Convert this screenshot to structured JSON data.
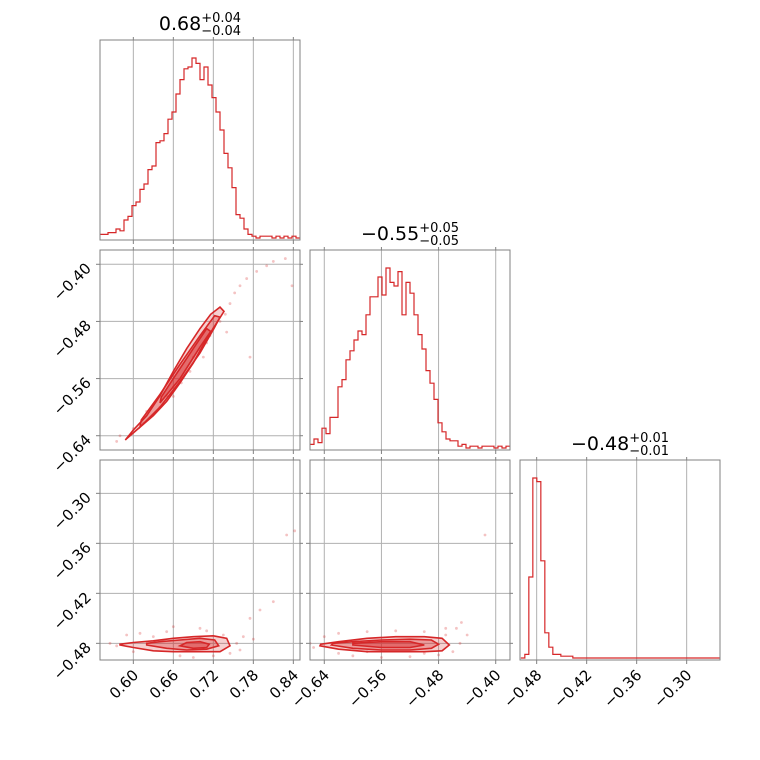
{
  "chart_data": {
    "type": "corner",
    "color": "#d62728",
    "parameters": [
      {
        "index": 0,
        "range": [
          0.55,
          0.85
        ],
        "ticks": [
          0.6,
          0.66,
          0.72,
          0.78,
          0.84
        ],
        "tick_labels": [
          "0.60",
          "0.66",
          "0.72",
          "0.78",
          "0.84"
        ],
        "title_median": "0.68",
        "title_upper": "+0.04",
        "title_lower": "−0.04",
        "hist_x_start": 0.55,
        "hist_bin_width": 0.006,
        "hist_counts": [
          2,
          2,
          3,
          3,
          5,
          4,
          10,
          12,
          18,
          20,
          27,
          30,
          38,
          40,
          53,
          54,
          58,
          66,
          70,
          80,
          88,
          94,
          95,
          100,
          97,
          88,
          95,
          85,
          78,
          70,
          60,
          47,
          39,
          28,
          13,
          11,
          5,
          2,
          1,
          0,
          1,
          1,
          1,
          0,
          1,
          0,
          1,
          0,
          1,
          0
        ]
      },
      {
        "index": 1,
        "range": [
          -0.66,
          -0.38
        ],
        "ticks": [
          -0.4,
          -0.48,
          -0.56,
          -0.64
        ],
        "tick_labels": [
          "−0.40",
          "−0.48",
          "−0.56",
          "−0.64"
        ],
        "title_median": "−0.55",
        "title_upper": "+0.05",
        "title_lower": "−0.05",
        "hist_x_start": -0.66,
        "hist_bin_width": 0.0056,
        "hist_counts": [
          2,
          5,
          3,
          11,
          8,
          17,
          17,
          34,
          38,
          49,
          54,
          60,
          65,
          63,
          74,
          84,
          84,
          95,
          85,
          100,
          92,
          90,
          98,
          74,
          92,
          86,
          74,
          63,
          55,
          43,
          36,
          27,
          14,
          9,
          5,
          4,
          4,
          1,
          2,
          0,
          1,
          1,
          0,
          1,
          1,
          1,
          0,
          1,
          0,
          1
        ]
      },
      {
        "index": 2,
        "range": [
          -0.5,
          -0.26
        ],
        "ticks": [
          -0.48,
          -0.42,
          -0.36,
          -0.3
        ],
        "tick_labels": [
          "−0.48",
          "−0.42",
          "−0.36",
          "−0.30"
        ],
        "title_median": "−0.48",
        "title_upper": "+0.01",
        "title_lower": "−0.01",
        "hist_x_start": -0.499,
        "hist_bin_width": 0.0048,
        "hist_counts": [
          0,
          2,
          45,
          100,
          98,
          54,
          14,
          6,
          2,
          2,
          1,
          1,
          1,
          0,
          0,
          0,
          0,
          0,
          0,
          0,
          0,
          0,
          0,
          0,
          0,
          0,
          0,
          0,
          0,
          0,
          0,
          0,
          0,
          0,
          0,
          0,
          0,
          0,
          0,
          0,
          0,
          0,
          0,
          0,
          0,
          0,
          0,
          0,
          0,
          0
        ]
      }
    ],
    "pairs": [
      {
        "x_param": 0,
        "y_param": 1,
        "contours": [
          [
            [
              0.59,
              -0.644
            ],
            [
              0.61,
              -0.628
            ],
            [
              0.63,
              -0.612
            ],
            [
              0.65,
              -0.592
            ],
            [
              0.67,
              -0.566
            ],
            [
              0.69,
              -0.538
            ],
            [
              0.71,
              -0.504
            ],
            [
              0.725,
              -0.482
            ],
            [
              0.736,
              -0.466
            ],
            [
              0.73,
              -0.46
            ],
            [
              0.716,
              -0.47
            ],
            [
              0.7,
              -0.49
            ],
            [
              0.68,
              -0.518
            ],
            [
              0.66,
              -0.55
            ],
            [
              0.64,
              -0.584
            ],
            [
              0.62,
              -0.612
            ],
            [
              0.6,
              -0.632
            ],
            [
              0.588,
              -0.646
            ]
          ],
          [
            [
              0.61,
              -0.628
            ],
            [
              0.64,
              -0.6
            ],
            [
              0.67,
              -0.564
            ],
            [
              0.7,
              -0.524
            ],
            [
              0.722,
              -0.488
            ],
            [
              0.73,
              -0.474
            ],
            [
              0.722,
              -0.472
            ],
            [
              0.7,
              -0.5
            ],
            [
              0.67,
              -0.54
            ],
            [
              0.64,
              -0.582
            ],
            [
              0.612,
              -0.618
            ]
          ],
          [
            [
              0.64,
              -0.594
            ],
            [
              0.67,
              -0.56
            ],
            [
              0.7,
              -0.516
            ],
            [
              0.716,
              -0.494
            ],
            [
              0.71,
              -0.49
            ],
            [
              0.69,
              -0.518
            ],
            [
              0.66,
              -0.56
            ],
            [
              0.642,
              -0.586
            ]
          ]
        ],
        "scatter": [
          [
            0.575,
            -0.648
          ],
          [
            0.58,
            -0.64
          ],
          [
            0.6,
            -0.63
          ],
          [
            0.615,
            -0.622
          ],
          [
            0.62,
            -0.606
          ],
          [
            0.64,
            -0.6
          ],
          [
            0.65,
            -0.584
          ],
          [
            0.66,
            -0.572
          ],
          [
            0.672,
            -0.566
          ],
          [
            0.685,
            -0.55
          ],
          [
            0.7,
            -0.52
          ],
          [
            0.705,
            -0.53
          ],
          [
            0.715,
            -0.5
          ],
          [
            0.72,
            -0.49
          ],
          [
            0.73,
            -0.48
          ],
          [
            0.738,
            -0.47
          ],
          [
            0.745,
            -0.455
          ],
          [
            0.752,
            -0.44
          ],
          [
            0.76,
            -0.43
          ],
          [
            0.77,
            -0.42
          ],
          [
            0.785,
            -0.41
          ],
          [
            0.8,
            -0.402
          ],
          [
            0.81,
            -0.396
          ],
          [
            0.828,
            -0.392
          ],
          [
            0.838,
            -0.43
          ],
          [
            0.775,
            -0.53
          ],
          [
            0.74,
            -0.495
          ],
          [
            0.69,
            -0.53
          ],
          [
            0.71,
            -0.51
          ],
          [
            0.66,
            -0.585
          ]
        ]
      },
      {
        "x_param": 0,
        "y_param": 2,
        "contours": [
          [
            [
              0.58,
              -0.482
            ],
            [
              0.6,
              -0.485
            ],
            [
              0.63,
              -0.489
            ],
            [
              0.66,
              -0.49
            ],
            [
              0.69,
              -0.49
            ],
            [
              0.71,
              -0.49
            ],
            [
              0.73,
              -0.49
            ],
            [
              0.745,
              -0.483
            ],
            [
              0.74,
              -0.474
            ],
            [
              0.72,
              -0.471
            ],
            [
              0.69,
              -0.472
            ],
            [
              0.66,
              -0.474
            ],
            [
              0.63,
              -0.477
            ],
            [
              0.6,
              -0.479
            ],
            [
              0.58,
              -0.481
            ]
          ],
          [
            [
              0.62,
              -0.482
            ],
            [
              0.65,
              -0.486
            ],
            [
              0.68,
              -0.488
            ],
            [
              0.71,
              -0.487
            ],
            [
              0.728,
              -0.483
            ],
            [
              0.722,
              -0.476
            ],
            [
              0.7,
              -0.474
            ],
            [
              0.67,
              -0.476
            ],
            [
              0.64,
              -0.478
            ],
            [
              0.62,
              -0.48
            ]
          ],
          [
            [
              0.67,
              -0.483
            ],
            [
              0.69,
              -0.486
            ],
            [
              0.71,
              -0.485
            ],
            [
              0.714,
              -0.481
            ],
            [
              0.7,
              -0.478
            ],
            [
              0.68,
              -0.479
            ]
          ]
        ],
        "scatter": [
          [
            0.565,
            -0.48
          ],
          [
            0.575,
            -0.483
          ],
          [
            0.59,
            -0.47
          ],
          [
            0.61,
            -0.468
          ],
          [
            0.63,
            -0.472
          ],
          [
            0.65,
            -0.466
          ],
          [
            0.67,
            -0.495
          ],
          [
            0.69,
            -0.497
          ],
          [
            0.71,
            -0.465
          ],
          [
            0.72,
            -0.495
          ],
          [
            0.735,
            -0.47
          ],
          [
            0.745,
            -0.492
          ],
          [
            0.755,
            -0.48
          ],
          [
            0.765,
            -0.472
          ],
          [
            0.775,
            -0.45
          ],
          [
            0.79,
            -0.44
          ],
          [
            0.81,
            -0.43
          ],
          [
            0.83,
            -0.35
          ],
          [
            0.842,
            -0.345
          ],
          [
            0.7,
            -0.462
          ],
          [
            0.66,
            -0.46
          ],
          [
            0.6,
            -0.49
          ],
          [
            0.76,
            -0.488
          ],
          [
            0.78,
            -0.475
          ]
        ]
      },
      {
        "x_param": 1,
        "y_param": 2,
        "contours": [
          [
            [
              -0.646,
              -0.483
            ],
            [
              -0.62,
              -0.487
            ],
            [
              -0.58,
              -0.49
            ],
            [
              -0.54,
              -0.49
            ],
            [
              -0.5,
              -0.49
            ],
            [
              -0.475,
              -0.489
            ],
            [
              -0.465,
              -0.482
            ],
            [
              -0.475,
              -0.474
            ],
            [
              -0.5,
              -0.472
            ],
            [
              -0.54,
              -0.472
            ],
            [
              -0.58,
              -0.474
            ],
            [
              -0.62,
              -0.478
            ],
            [
              -0.645,
              -0.481
            ]
          ],
          [
            [
              -0.63,
              -0.482
            ],
            [
              -0.6,
              -0.486
            ],
            [
              -0.56,
              -0.488
            ],
            [
              -0.52,
              -0.488
            ],
            [
              -0.49,
              -0.486
            ],
            [
              -0.48,
              -0.481
            ],
            [
              -0.49,
              -0.476
            ],
            [
              -0.52,
              -0.475
            ],
            [
              -0.56,
              -0.476
            ],
            [
              -0.6,
              -0.478
            ],
            [
              -0.628,
              -0.48
            ]
          ],
          [
            [
              -0.6,
              -0.482
            ],
            [
              -0.56,
              -0.485
            ],
            [
              -0.52,
              -0.485
            ],
            [
              -0.5,
              -0.482
            ],
            [
              -0.52,
              -0.478
            ],
            [
              -0.56,
              -0.478
            ],
            [
              -0.6,
              -0.48
            ]
          ]
        ],
        "scatter": [
          [
            -0.66,
            -0.48
          ],
          [
            -0.655,
            -0.485
          ],
          [
            -0.64,
            -0.472
          ],
          [
            -0.62,
            -0.468
          ],
          [
            -0.6,
            -0.495
          ],
          [
            -0.58,
            -0.466
          ],
          [
            -0.56,
            -0.497
          ],
          [
            -0.54,
            -0.465
          ],
          [
            -0.52,
            -0.496
          ],
          [
            -0.5,
            -0.466
          ],
          [
            -0.48,
            -0.494
          ],
          [
            -0.47,
            -0.47
          ],
          [
            -0.46,
            -0.49
          ],
          [
            -0.455,
            -0.462
          ],
          [
            -0.45,
            -0.48
          ],
          [
            -0.448,
            -0.455
          ],
          [
            -0.44,
            -0.47
          ],
          [
            -0.415,
            -0.35
          ],
          [
            -0.47,
            -0.462
          ],
          [
            -0.5,
            -0.492
          ],
          [
            -0.62,
            -0.492
          ],
          [
            -0.58,
            -0.49
          ]
        ]
      }
    ]
  }
}
